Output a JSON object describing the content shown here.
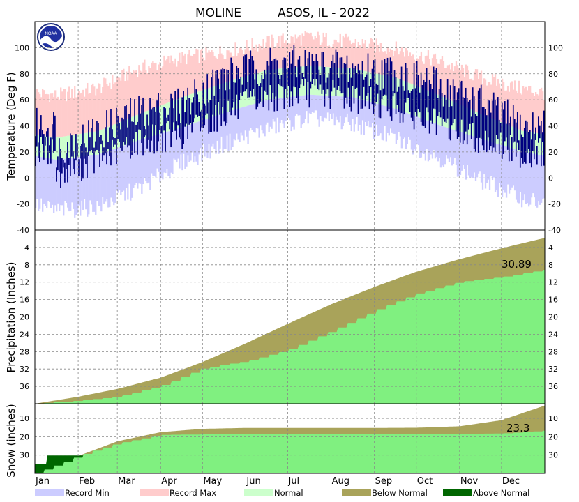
{
  "chart_data": [
    {
      "type": "line",
      "title_parts": [
        "MOLINE",
        "ASOS, IL - 2022"
      ],
      "ylabel": "Temperature (Deg F)",
      "ylim": [
        -40,
        120
      ],
      "yticks_left": [
        "100",
        "80",
        "60",
        "40",
        "20",
        "0",
        "-20",
        "-40"
      ],
      "yticks_right": [
        "100",
        "80",
        "60",
        "40",
        "20",
        "0",
        "-20",
        "-40"
      ],
      "ytick_values": [
        100,
        80,
        60,
        40,
        20,
        0,
        -20,
        -40
      ],
      "grid": true,
      "normal_high_monthly": [
        31,
        36,
        49,
        62,
        73,
        83,
        86,
        84,
        77,
        64,
        49,
        36,
        31
      ],
      "normal_low_monthly": [
        14,
        18,
        29,
        39,
        50,
        60,
        64,
        62,
        53,
        41,
        30,
        20,
        14
      ],
      "record_high_monthly": [
        63,
        69,
        84,
        92,
        97,
        104,
        108,
        104,
        99,
        90,
        77,
        68,
        63
      ],
      "record_low_monthly": [
        -25,
        -22,
        -8,
        12,
        26,
        38,
        46,
        42,
        30,
        16,
        -2,
        -16,
        -25
      ],
      "observed_high_monthly": [
        22,
        35,
        50,
        56,
        78,
        87,
        87,
        84,
        81,
        70,
        58,
        38,
        40
      ],
      "observed_low_monthly": [
        3,
        14,
        28,
        34,
        50,
        62,
        66,
        62,
        54,
        40,
        30,
        18,
        22
      ]
    },
    {
      "type": "area",
      "ylabel": "Precipitation (Inches)",
      "ylim": [
        0,
        40
      ],
      "ytick_values": [
        4,
        8,
        12,
        16,
        20,
        24,
        28,
        32,
        36
      ],
      "yticks_left": [
        "36",
        "32",
        "28",
        "24",
        "20",
        "16",
        "12",
        "8",
        "4"
      ],
      "yticks_right": [
        "36",
        "32",
        "28",
        "24",
        "20",
        "16",
        "12",
        "8",
        "4"
      ],
      "annotation": "30.89",
      "normal_cumulative_monthly": [
        0,
        1.6,
        3.4,
        6.0,
        9.6,
        13.9,
        18.4,
        22.9,
        26.9,
        30.4,
        33.3,
        35.8,
        38.2
      ],
      "observed_cumulative_monthly": [
        0,
        0.7,
        1.6,
        4.2,
        8.2,
        9.8,
        12.4,
        16.8,
        21.5,
        25.4,
        28.1,
        29.2,
        30.89
      ]
    },
    {
      "type": "area",
      "ylabel": "Snow (inches)",
      "ylim": [
        0,
        38
      ],
      "ytick_values": [
        10,
        20,
        30
      ],
      "yticks_left": [
        "30",
        "20",
        "10"
      ],
      "yticks_right": [
        "30",
        "20",
        "10"
      ],
      "annotation": "23.3",
      "normal_cumulative_monthly": [
        0,
        9.5,
        17.5,
        22.5,
        24.3,
        24.8,
        24.8,
        24.8,
        24.8,
        24.9,
        25.7,
        29.0,
        37.0
      ],
      "observed_cumulative_monthly": [
        0,
        9.8,
        16.5,
        21.0,
        21.3,
        21.3,
        21.3,
        21.3,
        21.3,
        21.3,
        21.5,
        21.8,
        23.3
      ]
    }
  ],
  "months": [
    "Jan",
    "Feb",
    "Mar",
    "Apr",
    "May",
    "Jun",
    "Jul",
    "Aug",
    "Sep",
    "Oct",
    "Nov",
    "Dec"
  ],
  "legend": [
    {
      "label": "Record Min",
      "color": "#ccccff"
    },
    {
      "label": "Record Max",
      "color": "#ffcccc"
    },
    {
      "label": "Normal",
      "color": "#ccffcc"
    },
    {
      "label": "Below Normal",
      "color": "#a9a35a"
    },
    {
      "label": "Above Normal",
      "color": "#006600"
    }
  ],
  "colors": {
    "record_min": "#ccccff",
    "record_max": "#ffcccc",
    "normal": "#ccffcc",
    "observed": "#000080",
    "observed_fill": "#80f080",
    "below_normal": "#a9a35a",
    "above_normal": "#006600"
  },
  "logo_text": "NOAA"
}
